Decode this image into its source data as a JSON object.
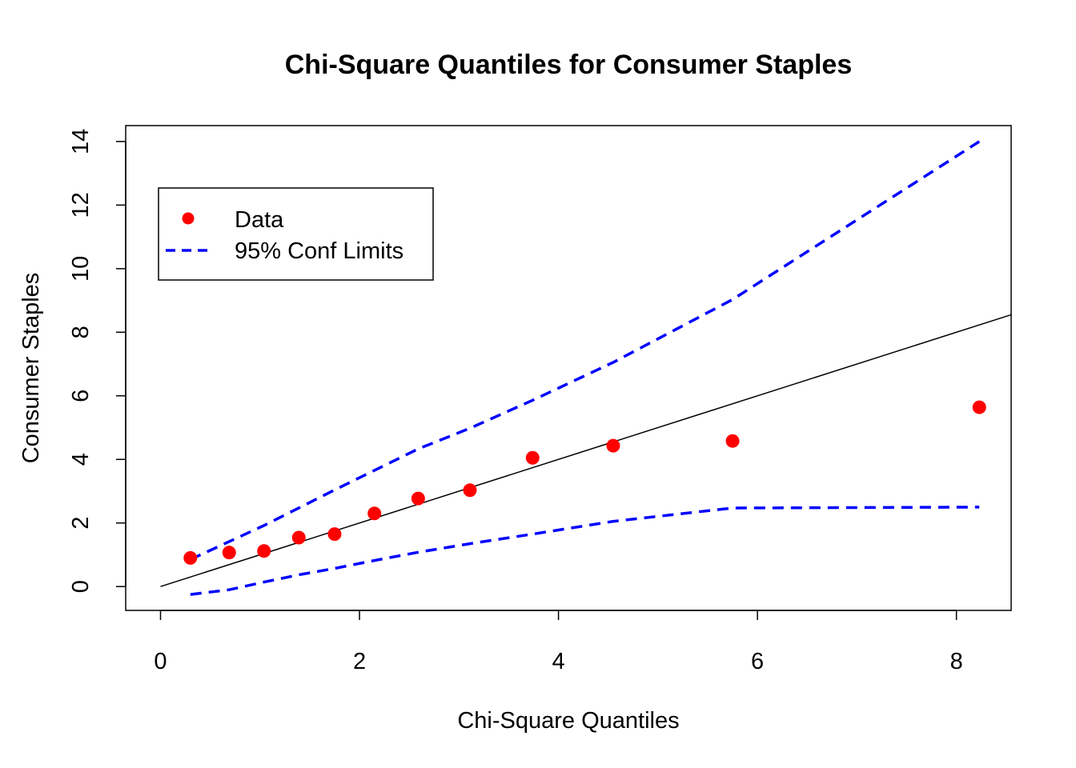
{
  "chart_data": {
    "type": "scatter",
    "title": "Chi-Square Quantiles for Consumer Staples",
    "xlabel": "Chi-Square Quantiles",
    "ylabel": "Consumer Staples",
    "xlim": [
      -0.35,
      8.55
    ],
    "ylim": [
      -0.75,
      14.5
    ],
    "xticks": [
      0,
      2,
      4,
      6,
      8
    ],
    "yticks": [
      0,
      2,
      4,
      6,
      8,
      10,
      12,
      14
    ],
    "grid": false,
    "legend_position": "top-left",
    "legend": [
      {
        "label": "Data",
        "kind": "point",
        "color": "#ff0000"
      },
      {
        "label": "95% Conf Limits",
        "kind": "dashed-line",
        "color": "#0000ff"
      }
    ],
    "points": {
      "name": "Data",
      "color": "#ff0000",
      "x": [
        0.3,
        0.69,
        1.04,
        1.39,
        1.75,
        2.15,
        2.59,
        3.11,
        3.74,
        4.55,
        5.75,
        8.23
      ],
      "y": [
        0.9,
        1.07,
        1.12,
        1.54,
        1.65,
        2.3,
        2.77,
        3.03,
        4.05,
        4.43,
        4.58,
        5.64
      ]
    },
    "reference_line": {
      "slope": 1.0,
      "intercept": 0.0,
      "color": "#000000",
      "x_from": 0
    },
    "upper_limit": {
      "color": "#0000ff",
      "x": [
        0.3,
        1.04,
        1.75,
        2.59,
        3.11,
        3.74,
        4.55,
        5.75,
        8.23
      ],
      "y": [
        0.85,
        1.92,
        3.04,
        4.33,
        4.98,
        5.86,
        7.05,
        9.03,
        14.0
      ]
    },
    "lower_limit": {
      "color": "#0000ff",
      "x": [
        0.3,
        0.69,
        1.04,
        1.39,
        1.75,
        2.15,
        2.59,
        3.11,
        3.74,
        4.55,
        5.75,
        8.23
      ],
      "y": [
        -0.25,
        -0.1,
        0.14,
        0.37,
        0.57,
        0.82,
        1.08,
        1.35,
        1.65,
        2.05,
        2.47,
        2.5
      ]
    }
  }
}
